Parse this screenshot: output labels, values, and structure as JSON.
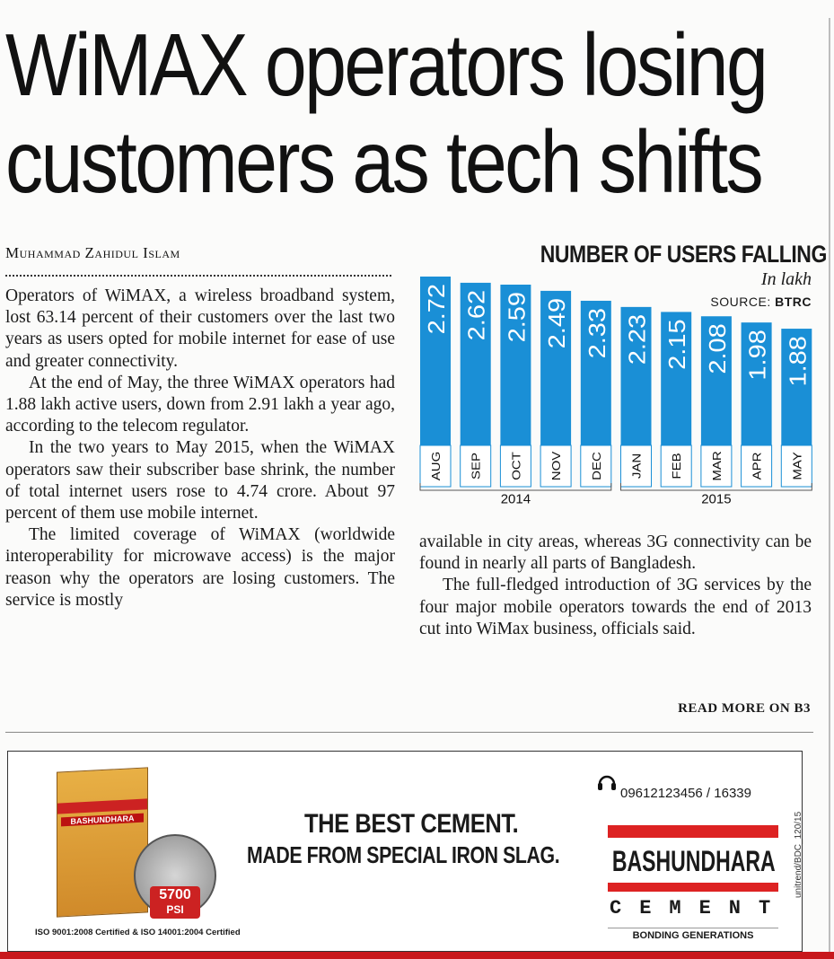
{
  "article": {
    "headline_line1": "WiMAX operators losing",
    "headline_line2": "customers as tech shifts",
    "byline": "Muhammad Zahidul Islam",
    "para1": "Operators of WiMAX, a wireless broadband system, lost 63.14 percent of their customers over the last two years as users opted for mobile internet for ease of use and greater connectivity.",
    "para2": "At the end of May, the three WiMAX operators had 1.88 lakh active users, down from 2.91 lakh a year ago, according to the telecom regulator.",
    "para3": "In the two years to May 2015, when the WiMAX operators saw their subscriber base shrink, the number of total internet users rose to 4.74 crore. About 97 percent of them use mobile internet.",
    "para4": "The limited coverage of WiMAX (worldwide interoperability for microwave access) is the major reason why the operators are losing customers. The service is mostly",
    "para5": "available in city areas, whereas 3G connectivity can be found in nearly all parts of Bangladesh.",
    "para6": "The full-fledged introduction of 3G services by the four major mobile operators towards the end of 2013 cut into WiMax business, officials said.",
    "read_more": "READ MORE ON B3"
  },
  "chart_data": {
    "type": "bar",
    "title": "NUMBER OF USERS FALLING",
    "unit": "In lakh",
    "source_label": "SOURCE:",
    "source": "BTRC",
    "categories": [
      "AUG",
      "SEP",
      "OCT",
      "NOV",
      "DEC",
      "JAN",
      "FEB",
      "MAR",
      "APR",
      "MAY"
    ],
    "values": [
      2.72,
      2.62,
      2.59,
      2.49,
      2.33,
      2.23,
      2.15,
      2.08,
      1.98,
      1.88
    ],
    "value_labels": [
      "2.72",
      "2.62",
      "2.59",
      "2.49",
      "2.33",
      "2.23",
      "2.15",
      "2.08",
      "1.98",
      "1.88"
    ],
    "year_groups": [
      {
        "label": "2014",
        "count": 5
      },
      {
        "label": "2015",
        "count": 5
      }
    ],
    "bar_color": "#1a8fd6"
  },
  "ad": {
    "line1": "THE BEST CEMENT.",
    "line2": "MADE FROM SPECIAL IRON SLAG.",
    "phone": "09612123456 / 16339",
    "brand": "BASHUNDHARA",
    "brand_sub": "CEMENT",
    "tagline": "BONDING GENERATIONS",
    "iso": "ISO 9001:2008 Certified & ISO 14001:2004 Certified",
    "psi_value": "5700",
    "psi_unit": "PSI",
    "bag_brand": "BASHUNDHARA",
    "code": "unitrend/BDC_120/15",
    "accent_color": "#d22222"
  }
}
